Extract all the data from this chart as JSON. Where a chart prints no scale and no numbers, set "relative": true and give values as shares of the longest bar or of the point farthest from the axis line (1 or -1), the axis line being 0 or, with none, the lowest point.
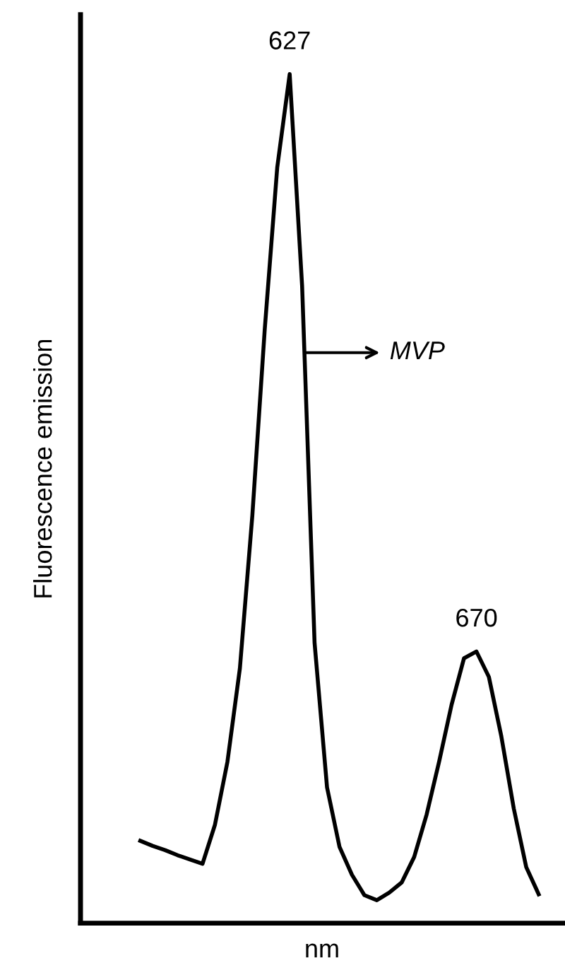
{
  "chart_data": {
    "type": "line",
    "relative": true,
    "xlabel": "nm",
    "ylabel": "Fluorescence emission",
    "categories": [
      null,
      null,
      null,
      null,
      null,
      null,
      null,
      null,
      null,
      null,
      null,
      null,
      null,
      null,
      null,
      null,
      null,
      null,
      null,
      null,
      null,
      null,
      null,
      null,
      null,
      null,
      null,
      null,
      null,
      null,
      null,
      null,
      null
    ],
    "series": [
      {
        "color": "#000000",
        "values": [
          0.097,
          0.091,
          0.086,
          0.08,
          0.075,
          0.07,
          0.116,
          0.19,
          0.3,
          0.48,
          0.7,
          0.89,
          1.0,
          0.75,
          0.33,
          0.16,
          0.09,
          0.057,
          0.033,
          0.027,
          0.036,
          0.048,
          0.078,
          0.128,
          0.19,
          0.257,
          0.312,
          0.32,
          0.29,
          0.22,
          0.135,
          0.066,
          0.034
        ]
      }
    ],
    "tick_labels": false,
    "annotations": [
      {
        "text": "627",
        "y": 1.0
      },
      {
        "text": "670",
        "y": 0.32
      },
      "MVP"
    ]
  }
}
